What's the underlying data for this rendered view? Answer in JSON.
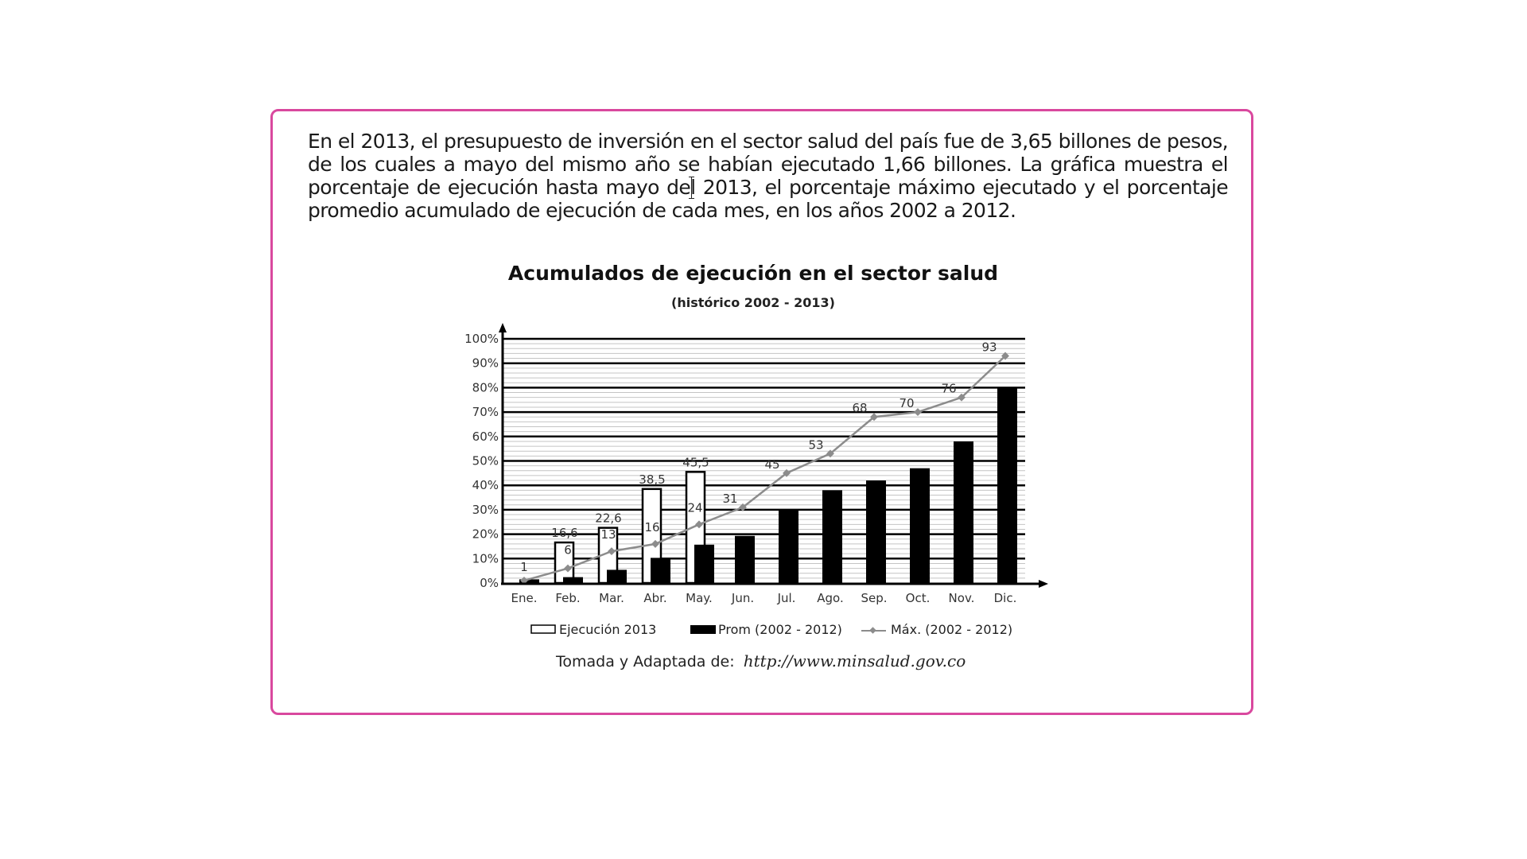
{
  "paragraph": "En el 2013, el presupuesto de inversión en el sector salud del país fue de 3,65 billones de pesos, de los cuales a mayo del mismo año se habían ejecutado 1,66 billones. La gráfica muestra el porcentaje de ejecución hasta mayo del 2013, el porcentaje máximo ejecutado y el porcentaje promedio acumulado de ejecución de cada mes, en los años 2002 a 2012.",
  "source": {
    "prefix": "Tomada y Adaptada de:",
    "url": "http://www.minsalud.gov.co"
  },
  "colors": {
    "border": "#d9489e",
    "ejecucion_fill": "#ffffff",
    "prom_fill": "#000000",
    "max_line": "#8c8c8c"
  },
  "chart_data": {
    "type": "bar",
    "title": "Acumulados de ejecución en el sector salud",
    "subtitle": "(histórico 2002 - 2013)",
    "xlabel": "",
    "ylabel": "",
    "ylim": [
      0,
      100
    ],
    "yticks": [
      "0%",
      "10%",
      "20%",
      "30%",
      "40%",
      "50%",
      "60%",
      "70%",
      "80%",
      "90%",
      "100%"
    ],
    "grid": true,
    "legend_position": "bottom",
    "categories": [
      "Ene.",
      "Feb.",
      "Mar.",
      "Abr.",
      "May.",
      "Jun.",
      "Jul.",
      "Ago.",
      "Sep.",
      "Oct.",
      "Nov.",
      "Dic."
    ],
    "series": [
      {
        "name": "Ejecución 2013",
        "type": "bar",
        "values": [
          null,
          16.6,
          22.6,
          38.5,
          45.5,
          null,
          null,
          null,
          null,
          null,
          null,
          null
        ],
        "labels": [
          "",
          "16,6",
          "22,6",
          "38,5",
          "45,5",
          "",
          "",
          "",
          "",
          "",
          "",
          ""
        ]
      },
      {
        "name": "Prom (2002 - 2012)",
        "type": "bar",
        "values": [
          1.5,
          2.4,
          5.4,
          10.3,
          15.7,
          19.3,
          30,
          38,
          42,
          47,
          58,
          80
        ]
      },
      {
        "name": "Máx. (2002 - 2012)",
        "type": "line",
        "values": [
          1,
          6,
          13,
          16,
          24,
          31,
          45,
          53,
          68,
          70,
          76,
          93
        ],
        "labels": [
          "1",
          "6",
          "13",
          "16",
          "24",
          "31",
          "45",
          "53",
          "68",
          "70",
          "76",
          "93"
        ]
      }
    ]
  }
}
